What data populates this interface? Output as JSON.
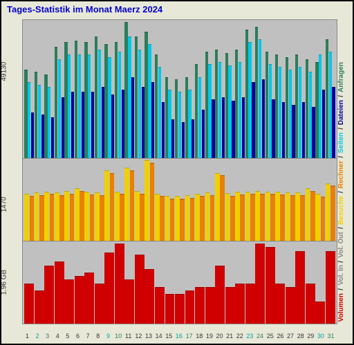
{
  "title": "Tages-Statistik im Monat Maerz 2024",
  "background_color": "#e8e8d8",
  "plot_background": "#c0c0c0",
  "days": [
    1,
    2,
    3,
    4,
    5,
    6,
    7,
    8,
    9,
    10,
    11,
    12,
    13,
    14,
    15,
    16,
    17,
    18,
    19,
    20,
    21,
    22,
    23,
    24,
    25,
    26,
    27,
    28,
    29,
    30,
    31
  ],
  "panels": {
    "top": {
      "ylabel": "49130",
      "max": 55000,
      "series": [
        {
          "color": "#2e7d5a",
          "class": "bar-green",
          "values": [
            35000,
            34000,
            33000,
            44000,
            46000,
            46500,
            46000,
            48000,
            45000,
            46000,
            54000,
            48000,
            50000,
            41000,
            32000,
            31000,
            32000,
            37000,
            42000,
            43000,
            41500,
            43000,
            51000,
            52000,
            42000,
            41000,
            40000,
            41000,
            39000,
            38000,
            47000
          ]
        },
        {
          "color": "#00c8e8",
          "class": "bar-cyan",
          "values": [
            30000,
            29000,
            28000,
            39000,
            41000,
            41000,
            41000,
            43000,
            40000,
            42000,
            48000,
            43000,
            45000,
            36000,
            27000,
            26000,
            27000,
            32000,
            37000,
            38000,
            36500,
            38000,
            46000,
            47000,
            37000,
            36000,
            35000,
            36000,
            34000,
            41000,
            42000
          ]
        },
        {
          "color": "#0000a0",
          "class": "bar-navy",
          "values": [
            18000,
            17000,
            16000,
            24000,
            26000,
            26000,
            26000,
            28000,
            25000,
            27000,
            32000,
            28000,
            30000,
            22000,
            15000,
            14000,
            15000,
            19000,
            23000,
            24000,
            22500,
            24000,
            30000,
            31000,
            23000,
            22000,
            21000,
            22000,
            20000,
            27000,
            28000
          ]
        }
      ]
    },
    "mid": {
      "ylabel": "1470",
      "max": 1600,
      "series": [
        {
          "color": "#f0d000",
          "class": "bar-yellow",
          "values": [
            900,
            920,
            940,
            920,
            950,
            1000,
            930,
            920,
            1350,
            940,
            1400,
            950,
            1550,
            900,
            850,
            850,
            870,
            900,
            920,
            1300,
            910,
            930,
            940,
            950,
            940,
            930,
            920,
            920,
            1000,
            890,
            1100
          ]
        },
        {
          "color": "#e88000",
          "class": "bar-orange",
          "values": [
            850,
            870,
            890,
            870,
            900,
            950,
            880,
            870,
            1300,
            890,
            1350,
            900,
            1500,
            850,
            800,
            800,
            820,
            850,
            870,
            1250,
            860,
            880,
            890,
            900,
            890,
            880,
            870,
            870,
            950,
            840,
            1050
          ]
        }
      ]
    },
    "bot": {
      "ylabel": "1.96 GB",
      "max": 2.3,
      "series": [
        {
          "color": "#d00000",
          "class": "bar-red",
          "values": [
            1.1,
            0.9,
            1.6,
            1.7,
            1.2,
            1.3,
            1.4,
            1.1,
            1.95,
            2.2,
            1.2,
            1.9,
            1.5,
            1.0,
            0.8,
            0.8,
            0.9,
            1.0,
            1.0,
            1.6,
            1.0,
            1.1,
            1.1,
            2.2,
            2.1,
            1.1,
            1.0,
            2.0,
            1.1,
            0.6,
            2.0
          ]
        }
      ]
    }
  },
  "xaxis_colors": {
    "sat": "#00a0a0",
    "sun": "#2e7d5a",
    "wk": "#333"
  },
  "weekday_map": [
    5,
    6,
    0,
    1,
    2,
    3,
    4,
    5,
    6,
    0,
    1,
    2,
    3,
    4,
    5,
    6,
    0,
    1,
    2,
    3,
    4,
    5,
    6,
    0,
    1,
    2,
    3,
    4,
    5,
    6,
    0
  ],
  "legend": [
    {
      "label": "Volumen",
      "color": "#d00000"
    },
    {
      "label": "Vol. In",
      "color": "#888"
    },
    {
      "label": "Vol. Out",
      "color": "#888"
    },
    {
      "label": "Besuche",
      "color": "#f0d000"
    },
    {
      "label": "Rechner",
      "color": "#e88000"
    },
    {
      "label": "Seiten",
      "color": "#00c8e8"
    },
    {
      "label": "Dateien",
      "color": "#0000a0"
    },
    {
      "label": "Anfragen",
      "color": "#2e7d5a"
    }
  ]
}
